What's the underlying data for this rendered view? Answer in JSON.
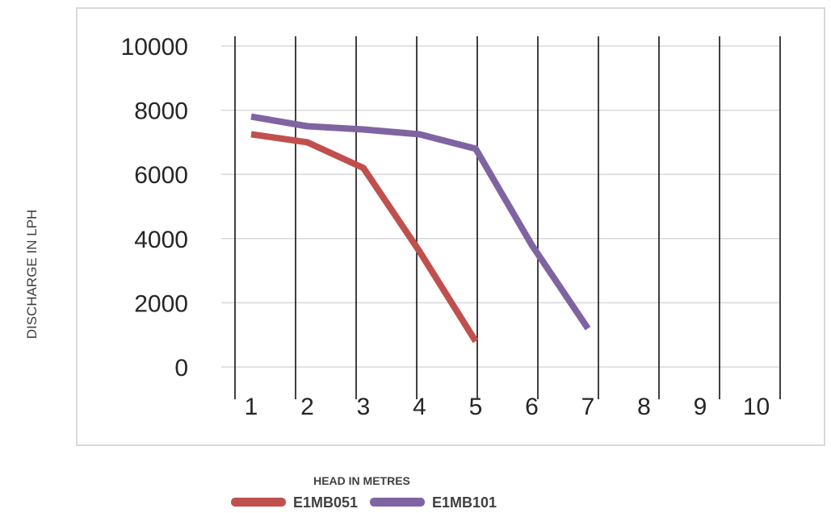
{
  "chart_data": {
    "type": "line",
    "title": "",
    "xlabel": "HEAD IN METRES",
    "ylabel": "DISCHARGE IN LPH",
    "categories": [
      "1",
      "2",
      "3",
      "4",
      "5",
      "6",
      "7",
      "8",
      "9",
      "10"
    ],
    "ylim": [
      0,
      10000
    ],
    "yticks": [
      "0",
      "2000",
      "4000",
      "6000",
      "8000",
      "10000"
    ],
    "grid": "horizontal and vertical",
    "legend_position": "bottom",
    "series": [
      {
        "name": "E1MB051",
        "color": "#c0504d",
        "values": [
          7250,
          7000,
          6200,
          3600,
          800,
          null,
          null,
          null,
          null,
          null
        ]
      },
      {
        "name": "E1MB101",
        "color": "#8064a2",
        "values": [
          7800,
          7500,
          7400,
          7250,
          6800,
          3800,
          1200,
          null,
          null,
          null
        ]
      }
    ]
  }
}
